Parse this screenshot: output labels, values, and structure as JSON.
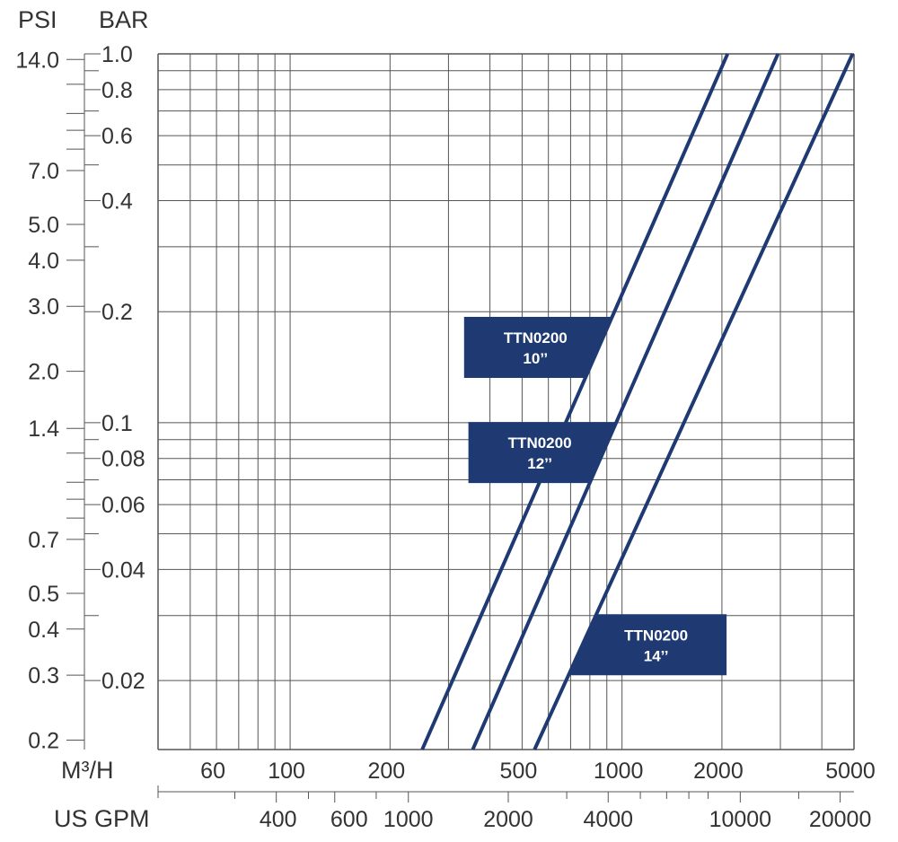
{
  "chart_data": {
    "type": "line",
    "x_scale": "log",
    "y_scale": "log",
    "units": {
      "psi": "PSI",
      "bar": "BAR",
      "m3h": "M³/H",
      "gpm": "US GPM"
    },
    "psi_ticks": [
      "14.0",
      "7.0",
      "5.0",
      "4.0",
      "3.0",
      "2.0",
      "1.4",
      "0.7",
      "0.5",
      "0.4",
      "0.3",
      "0.2"
    ],
    "bar_ticks": [
      "1.0",
      "0.8",
      "0.6",
      "0.4",
      "0.2",
      "0.1",
      "0.08",
      "0.06",
      "0.04",
      "0.02"
    ],
    "m3h_ticks": [
      "60",
      "100",
      "200",
      "500",
      "1000",
      "2000",
      "5000"
    ],
    "gpm_ticks": [
      "400",
      "600",
      "1000",
      "2000",
      "4000",
      "10000",
      "20000"
    ],
    "xlim_m3h": [
      40,
      5000
    ],
    "ylim_bar": [
      0.013,
      1.0
    ],
    "grid": true,
    "colors": {
      "line": "#1f3a73",
      "grid": "#555555",
      "label_box": "#1f3a73"
    },
    "series": [
      {
        "name": "TTN0200 10’’",
        "model": "TTN0200",
        "size": "10’’",
        "x_m3h": [
          250,
          2080
        ],
        "y_bar": [
          0.013,
          1.0
        ]
      },
      {
        "name": "TTN0200 12’’",
        "model": "TTN0200",
        "size": "12’’",
        "x_m3h": [
          355,
          2950
        ],
        "y_bar": [
          0.013,
          1.0
        ]
      },
      {
        "name": "TTN0200 14’’",
        "model": "TTN0200",
        "size": "14’’",
        "x_m3h": [
          545,
          4950
        ],
        "y_bar": [
          0.013,
          1.0
        ]
      }
    ]
  }
}
